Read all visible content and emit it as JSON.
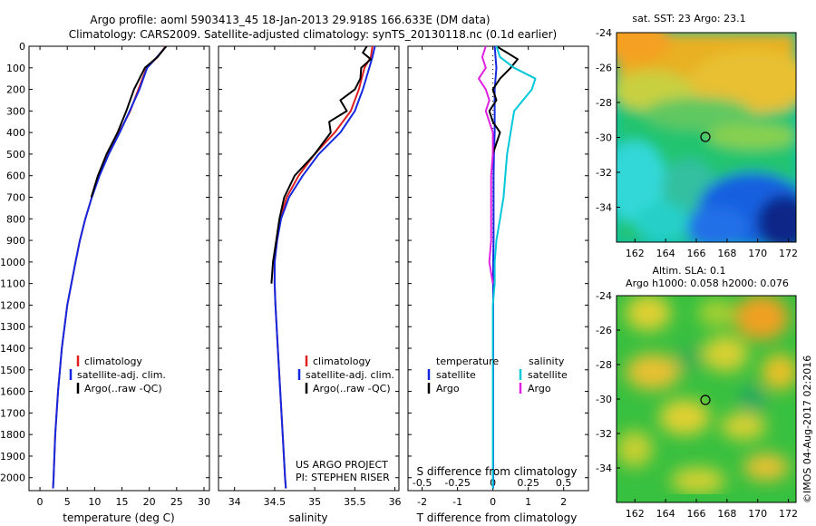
{
  "header": {
    "line1": "Argo profile: aoml 5903413_45 18-Jan-2013 29.918S 166.633E (DM data)",
    "line2": "Climatology: CARS2009. Satellite-adjusted climatology: synTS_20130118.nc (0.1d earlier)"
  },
  "colors": {
    "climatology": "#e02020",
    "satellite": "#1428e0",
    "argo": "#000000",
    "sat_t": "#00c8d8",
    "argo_s": "#e020e0"
  },
  "legend1": [
    "climatology",
    "satellite-adj. clim.",
    "Argo(..raw -QC)"
  ],
  "legend3": {
    "temp_title": "temperature",
    "sal_title": "salinity",
    "temp_items": [
      "satellite",
      "Argo"
    ],
    "sal_items": [
      "satellite",
      "Argo"
    ]
  },
  "credits": {
    "line1": "US ARGO PROJECT",
    "line2": "PI: STEPHEN RISER"
  },
  "side_credit": "©IMOS 04-Aug-2017 02:2016",
  "map1": {
    "title": "sat. SST: 23 Argo: 23.1"
  },
  "map2": {
    "title1": "Altim. SLA: 0.1",
    "title2": "Argo h1000: 0.058 h2000: 0.076"
  },
  "chart_data": [
    {
      "type": "line",
      "id": "temperature",
      "xlabel": "temperature (deg C)",
      "xlim": [
        -2,
        31
      ],
      "ylim": [
        0,
        2060
      ],
      "xticks": [
        0,
        5,
        10,
        15,
        20,
        25,
        30
      ],
      "yticks": [
        0,
        100,
        200,
        300,
        400,
        500,
        600,
        700,
        800,
        900,
        1000,
        1100,
        1200,
        1300,
        1400,
        1500,
        1600,
        1700,
        1800,
        1900,
        2000
      ],
      "series": [
        {
          "name": "climatology",
          "depth": [
            0,
            50,
            100,
            200,
            300,
            400,
            500,
            600,
            700,
            800,
            900,
            1000,
            1200,
            1400,
            1600,
            1800,
            2000,
            2050
          ],
          "values": [
            23,
            21.5,
            19.5,
            18,
            16.5,
            14.5,
            12.5,
            10.8,
            9.5,
            8.3,
            7.3,
            6.5,
            5,
            4,
            3.3,
            2.8,
            2.5,
            2.4
          ]
        },
        {
          "name": "satellite-adj. clim.",
          "depth": [
            0,
            50,
            100,
            200,
            300,
            400,
            500,
            600,
            700,
            800,
            900,
            1000,
            1200,
            1400,
            1600,
            1800,
            2000,
            2050
          ],
          "values": [
            23.1,
            21.4,
            19.6,
            18.2,
            16.4,
            14.6,
            12.6,
            10.9,
            9.5,
            8.3,
            7.3,
            6.5,
            5,
            4,
            3.3,
            2.8,
            2.5,
            2.4
          ]
        },
        {
          "name": "Argo(..raw -QC)",
          "depth": [
            0,
            50,
            100,
            200,
            300,
            400,
            500,
            600,
            700
          ],
          "values": [
            23.1,
            21.5,
            19.2,
            17.2,
            15.8,
            14.2,
            12.2,
            10.6,
            9.4
          ]
        }
      ]
    },
    {
      "type": "line",
      "id": "salinity",
      "xlabel": "salinity",
      "xlim": [
        33.8,
        36.05
      ],
      "ylim": [
        0,
        2060
      ],
      "xticks": [
        34,
        34.5,
        35,
        35.5,
        36
      ],
      "series": [
        {
          "name": "climatology",
          "depth": [
            0,
            50,
            100,
            200,
            300,
            400,
            500,
            600,
            700,
            800,
            900,
            1000,
            1100,
            1200,
            1400,
            1600,
            1800,
            2000,
            2050
          ],
          "values": [
            35.72,
            35.7,
            35.62,
            35.55,
            35.45,
            35.25,
            35.0,
            34.8,
            34.65,
            34.57,
            34.53,
            34.5,
            34.5,
            34.51,
            34.54,
            34.57,
            34.6,
            34.63,
            34.64
          ]
        },
        {
          "name": "satellite-adj. clim.",
          "depth": [
            0,
            50,
            100,
            200,
            300,
            400,
            500,
            600,
            700,
            800,
            900,
            1000,
            1100,
            1200,
            1400,
            1600,
            1800,
            2000,
            2050
          ],
          "values": [
            35.75,
            35.72,
            35.68,
            35.6,
            35.5,
            35.32,
            35.05,
            34.85,
            34.68,
            34.58,
            34.53,
            34.5,
            34.5,
            34.51,
            34.54,
            34.57,
            34.6,
            34.63,
            34.64
          ]
        },
        {
          "name": "Argo(..raw -QC)",
          "depth": [
            0,
            30,
            60,
            100,
            150,
            200,
            250,
            300,
            350,
            400,
            500,
            600,
            700,
            800,
            900,
            1000,
            1100
          ],
          "values": [
            35.65,
            35.6,
            35.7,
            35.58,
            35.57,
            35.5,
            35.32,
            35.4,
            35.18,
            35.2,
            35.0,
            34.75,
            34.62,
            34.56,
            34.52,
            34.48,
            34.46
          ]
        }
      ]
    },
    {
      "type": "line",
      "id": "difference",
      "xlabel": "T difference from climatology",
      "x2label": "S difference from climatology",
      "xlim": [
        -2.4,
        2.7
      ],
      "ylim": [
        0,
        2060
      ],
      "xticks": [
        -2,
        -1,
        0,
        1,
        2
      ],
      "x2ticks": [
        "-0.5",
        "-0.25",
        "0",
        "0.25",
        "0.5"
      ],
      "series": [
        {
          "name": "temperature satellite",
          "depth": [
            0,
            100,
            200,
            300,
            400,
            500,
            600,
            700,
            800,
            900,
            1000,
            1100,
            1200,
            1400,
            1600,
            1800,
            2000,
            2050
          ],
          "values": [
            0.05,
            0.1,
            0.05,
            0.05,
            0.05,
            0.03,
            0.02,
            0.02,
            0.02,
            0.02,
            0.01,
            0.01,
            0.01,
            0.01,
            0.01,
            0.01,
            0.01,
            0.01
          ]
        },
        {
          "name": "temperature Argo",
          "depth": [
            0,
            30,
            60,
            100,
            150,
            200,
            250,
            300,
            350,
            400,
            450,
            500
          ],
          "values": [
            0.1,
            0.4,
            0.7,
            0.5,
            0.2,
            0.0,
            0.1,
            -0.1,
            0.0,
            0.2,
            0.1,
            0.0
          ]
        },
        {
          "name": "salinity satellite",
          "depth": [
            0,
            50,
            100,
            150,
            200,
            300,
            400,
            500,
            600,
            700,
            800,
            900,
            1000,
            1100,
            1200,
            1400,
            1600,
            1800,
            2000,
            2050
          ],
          "values": [
            0.1,
            0.2,
            0.6,
            1.2,
            1.1,
            0.6,
            0.5,
            0.4,
            0.35,
            0.3,
            0.2,
            0.1,
            0.05,
            0.05,
            0.0,
            0.0,
            0.0,
            0.0,
            0.0,
            0.0
          ]
        },
        {
          "name": "salinity Argo",
          "depth": [
            0,
            50,
            100,
            150,
            200,
            250,
            300,
            350,
            400,
            500,
            600,
            700,
            800,
            900,
            1000,
            1100
          ],
          "values": [
            -0.2,
            -0.3,
            -0.2,
            -0.4,
            -0.2,
            -0.1,
            -0.2,
            -0.1,
            0.0,
            0.0,
            -0.05,
            -0.05,
            -0.05,
            -0.05,
            -0.1,
            0.0
          ]
        }
      ]
    },
    {
      "type": "heatmap",
      "id": "sst_map",
      "title": "sat. SST: 23 Argo: 23.1",
      "xlim": [
        160.8,
        172.5
      ],
      "ylim": [
        -36,
        -24
      ],
      "xticks": [
        162,
        164,
        166,
        168,
        170,
        172
      ],
      "yticks": [
        -24,
        -26,
        -28,
        -30,
        -32,
        -34
      ],
      "argo_position": [
        166.633,
        -29.918
      ]
    },
    {
      "type": "heatmap",
      "id": "sla_map",
      "title": "Altim. SLA: 0.1",
      "subtitle": "Argo h1000: 0.058 h2000: 0.076",
      "xlim": [
        160.8,
        172.5
      ],
      "ylim": [
        -36,
        -24
      ],
      "xticks": [
        162,
        164,
        166,
        168,
        170,
        172
      ],
      "yticks": [
        -24,
        -26,
        -28,
        -30,
        -32,
        -34
      ],
      "argo_position": [
        166.633,
        -29.918
      ]
    }
  ]
}
